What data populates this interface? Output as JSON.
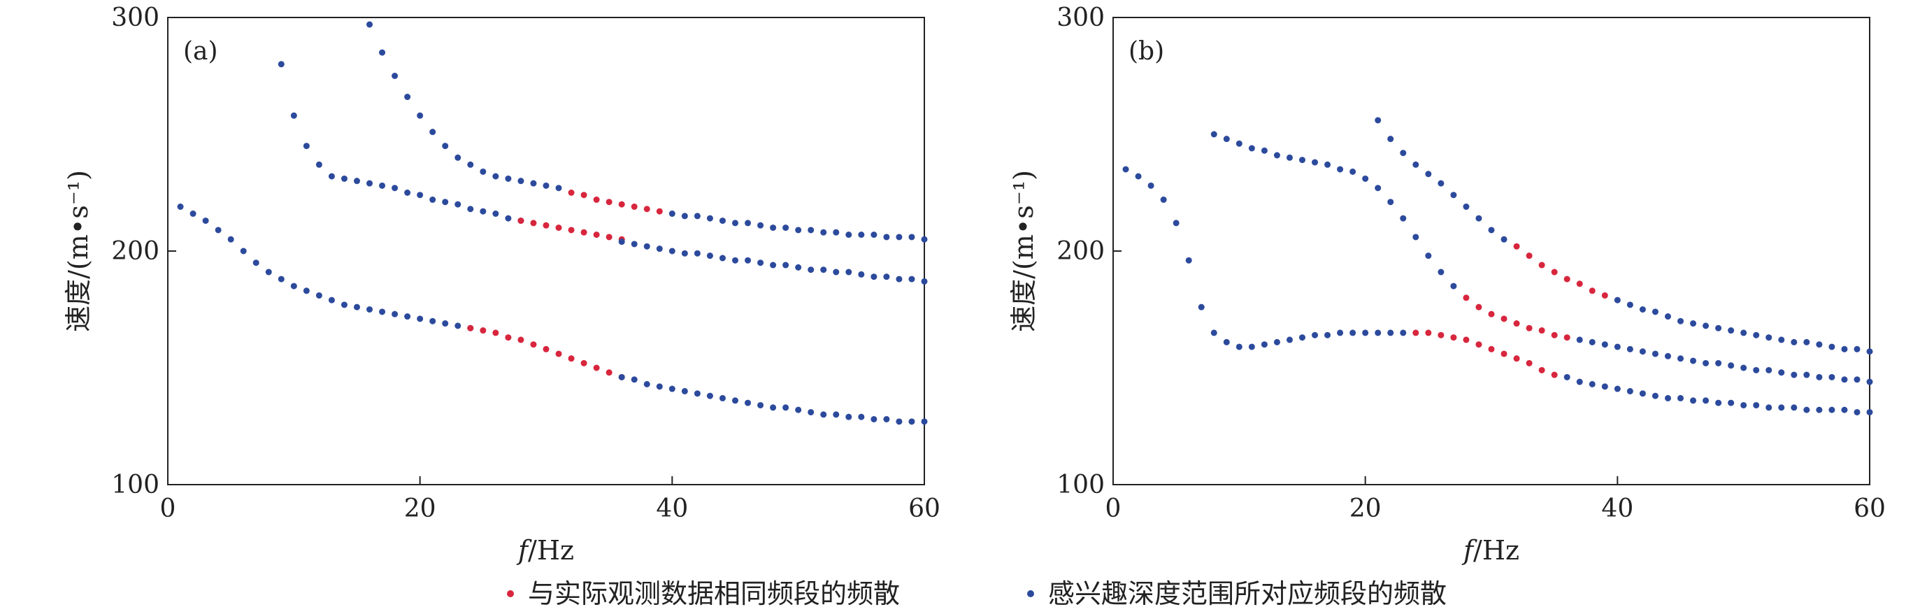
{
  "colors": {
    "red": "#d7263d",
    "blue": "#2c4a9c",
    "axis": "#222222"
  },
  "legend": [
    {
      "key": "red",
      "label": "与实际观测数据相同频段的频散"
    },
    {
      "key": "blue",
      "label": "感兴趣深度范围所对应频段的频散"
    }
  ],
  "chart_data": [
    {
      "type": "scatter",
      "panel_label": "(a)",
      "xlabel": "f/Hz",
      "ylabel": "速度/(m•s⁻¹)",
      "xlim": [
        0,
        60
      ],
      "ylim": [
        100,
        300
      ],
      "xticks": [
        0,
        20,
        40,
        60
      ],
      "yticks": [
        100,
        200,
        300
      ],
      "series": [
        {
          "color_key": "blue",
          "x": [
            1,
            2,
            3,
            4,
            5,
            6,
            7,
            8,
            9,
            10,
            11,
            12,
            13,
            14,
            15,
            16,
            17,
            18,
            19,
            20,
            21,
            22,
            23,
            24
          ],
          "y": [
            219,
            216,
            213,
            209,
            205,
            200,
            195,
            191,
            188,
            185,
            183,
            181,
            179,
            177,
            176,
            175,
            174,
            173,
            172,
            171,
            170,
            169,
            168,
            167
          ]
        },
        {
          "color_key": "red",
          "x": [
            24,
            25,
            26,
            27,
            28,
            29,
            30,
            31,
            32,
            33,
            34,
            35,
            36
          ],
          "y": [
            167,
            166,
            165,
            163,
            162,
            160,
            158,
            156,
            154,
            152,
            150,
            148,
            146
          ]
        },
        {
          "color_key": "blue",
          "x": [
            36,
            37,
            38,
            39,
            40,
            41,
            42,
            43,
            44,
            45,
            46,
            47,
            48,
            49,
            50,
            51,
            52,
            53,
            54,
            55,
            56,
            57,
            58,
            59,
            60
          ],
          "y": [
            146,
            145,
            143,
            142,
            141,
            140,
            139,
            138,
            137,
            136,
            135,
            134,
            133,
            133,
            132,
            131,
            130,
            130,
            129,
            129,
            128,
            128,
            127,
            127,
            127
          ]
        },
        {
          "color_key": "blue",
          "x": [
            9,
            10,
            11,
            12,
            13,
            14,
            15,
            16,
            17,
            18,
            19,
            20,
            21,
            22,
            23,
            24,
            25,
            26,
            27,
            28
          ],
          "y": [
            280,
            258,
            245,
            237,
            232,
            231,
            230,
            229,
            228,
            227,
            225,
            224,
            222,
            221,
            220,
            218,
            217,
            216,
            214,
            213
          ]
        },
        {
          "color_key": "red",
          "x": [
            28,
            29,
            30,
            31,
            32,
            33,
            34,
            35,
            36
          ],
          "y": [
            213,
            212,
            211,
            210,
            209,
            208,
            207,
            206,
            205
          ]
        },
        {
          "color_key": "blue",
          "x": [
            36,
            37,
            38,
            39,
            40,
            41,
            42,
            43,
            44,
            45,
            46,
            47,
            48,
            49,
            50,
            51,
            52,
            53,
            54,
            55,
            56,
            57,
            58,
            59,
            60
          ],
          "y": [
            204,
            203,
            202,
            201,
            200,
            199,
            199,
            198,
            197,
            196,
            196,
            195,
            194,
            194,
            193,
            192,
            192,
            191,
            191,
            190,
            189,
            189,
            188,
            188,
            187
          ]
        },
        {
          "color_key": "blue",
          "x": [
            16,
            17,
            18,
            19,
            20,
            21,
            22,
            23,
            24,
            25,
            26,
            27,
            28,
            29,
            30,
            31
          ],
          "y": [
            297,
            285,
            275,
            266,
            258,
            251,
            245,
            240,
            237,
            234,
            232,
            231,
            230,
            229,
            228,
            227
          ]
        },
        {
          "color_key": "red",
          "x": [
            32,
            33,
            34,
            35,
            36,
            37,
            38,
            39
          ],
          "y": [
            225,
            224,
            222,
            221,
            220,
            219,
            218,
            217
          ]
        },
        {
          "color_key": "blue",
          "x": [
            40,
            41,
            42,
            43,
            44,
            45,
            46,
            47,
            48,
            49,
            50,
            51,
            52,
            53,
            54,
            55,
            56,
            57,
            58,
            59,
            60
          ],
          "y": [
            216,
            215,
            215,
            214,
            213,
            212,
            212,
            211,
            210,
            210,
            209,
            209,
            208,
            208,
            207,
            207,
            207,
            206,
            206,
            206,
            205
          ]
        }
      ]
    },
    {
      "type": "scatter",
      "panel_label": "(b)",
      "xlabel": "f/Hz",
      "ylabel": "速度/(m•s⁻¹)",
      "xlim": [
        0,
        60
      ],
      "ylim": [
        100,
        300
      ],
      "xticks": [
        0,
        20,
        40,
        60
      ],
      "yticks": [
        100,
        200,
        300
      ],
      "series": [
        {
          "color_key": "blue",
          "x": [
            1,
            2,
            3,
            4,
            5,
            6,
            7,
            8,
            9,
            10,
            11,
            12,
            13,
            14,
            15,
            16,
            17,
            18,
            19,
            20,
            21,
            22,
            23
          ],
          "y": [
            235,
            232,
            228,
            222,
            212,
            196,
            176,
            165,
            161,
            159,
            159,
            160,
            161,
            162,
            163,
            164,
            164,
            165,
            165,
            165,
            165,
            165,
            165
          ]
        },
        {
          "color_key": "red",
          "x": [
            24,
            25,
            26,
            27,
            28,
            29,
            30,
            31,
            32,
            33,
            34,
            35
          ],
          "y": [
            165,
            165,
            164,
            163,
            162,
            160,
            158,
            156,
            154,
            152,
            149,
            147
          ]
        },
        {
          "color_key": "blue",
          "x": [
            36,
            37,
            38,
            39,
            40,
            41,
            42,
            43,
            44,
            45,
            46,
            47,
            48,
            49,
            50,
            51,
            52,
            53,
            54,
            55,
            56,
            57,
            58,
            59,
            60
          ],
          "y": [
            146,
            144,
            143,
            142,
            141,
            140,
            139,
            138,
            137,
            137,
            136,
            136,
            135,
            135,
            134,
            134,
            133,
            133,
            133,
            132,
            132,
            132,
            132,
            131,
            131
          ]
        },
        {
          "color_key": "blue",
          "x": [
            8,
            9,
            10,
            11,
            12,
            13,
            14,
            15,
            16,
            17,
            18,
            19,
            20,
            21,
            22,
            23,
            24,
            25,
            26,
            27
          ],
          "y": [
            250,
            248,
            246,
            244,
            243,
            241,
            240,
            239,
            238,
            237,
            235,
            234,
            231,
            227,
            221,
            214,
            206,
            198,
            191,
            185
          ]
        },
        {
          "color_key": "red",
          "x": [
            28,
            29,
            30,
            31,
            32,
            33,
            34,
            35,
            36
          ],
          "y": [
            180,
            176,
            173,
            171,
            169,
            167,
            166,
            164,
            163
          ]
        },
        {
          "color_key": "blue",
          "x": [
            37,
            38,
            39,
            40,
            41,
            42,
            43,
            44,
            45,
            46,
            47,
            48,
            49,
            50,
            51,
            52,
            53,
            54,
            55,
            56,
            57,
            58,
            59,
            60
          ],
          "y": [
            162,
            161,
            160,
            159,
            158,
            157,
            156,
            155,
            154,
            153,
            152,
            152,
            151,
            150,
            149,
            149,
            148,
            147,
            147,
            146,
            146,
            145,
            145,
            144
          ]
        },
        {
          "color_key": "blue",
          "x": [
            21,
            22,
            23,
            24,
            25,
            26,
            27,
            28,
            29,
            30,
            31
          ],
          "y": [
            256,
            248,
            242,
            237,
            233,
            229,
            224,
            219,
            214,
            209,
            205
          ]
        },
        {
          "color_key": "red",
          "x": [
            32,
            33,
            34,
            35,
            36,
            37,
            38,
            39
          ],
          "y": [
            202,
            198,
            194,
            191,
            188,
            186,
            183,
            181
          ]
        },
        {
          "color_key": "blue",
          "x": [
            40,
            41,
            42,
            43,
            44,
            45,
            46,
            47,
            48,
            49,
            50,
            51,
            52,
            53,
            54,
            55,
            56,
            57,
            58,
            59,
            60
          ],
          "y": [
            179,
            177,
            175,
            174,
            172,
            170,
            169,
            168,
            167,
            166,
            165,
            164,
            163,
            162,
            161,
            161,
            160,
            159,
            158,
            158,
            157
          ]
        }
      ]
    }
  ]
}
